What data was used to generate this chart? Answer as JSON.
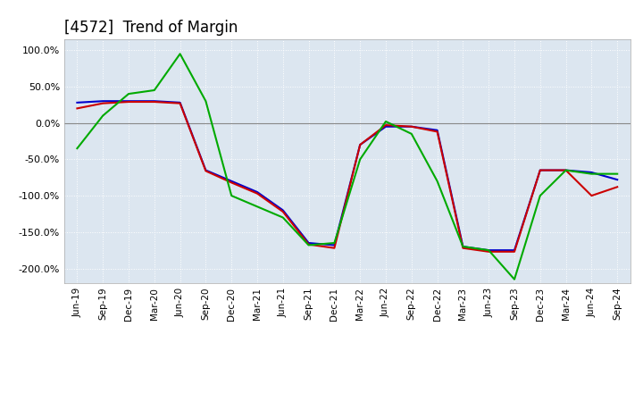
{
  "title": "[4572]  Trend of Margin",
  "x_labels": [
    "Jun-19",
    "Sep-19",
    "Dec-19",
    "Mar-20",
    "Jun-20",
    "Sep-20",
    "Dec-20",
    "Mar-21",
    "Jun-21",
    "Sep-21",
    "Dec-21",
    "Mar-22",
    "Jun-22",
    "Sep-22",
    "Dec-22",
    "Mar-23",
    "Jun-23",
    "Sep-23",
    "Dec-23",
    "Mar-24",
    "Jun-24",
    "Sep-24"
  ],
  "ordinary_income": [
    28,
    30,
    30,
    30,
    28,
    -65,
    -80,
    -95,
    -120,
    -165,
    -168,
    -30,
    -5,
    -5,
    -10,
    -170,
    -175,
    -175,
    -65,
    -65,
    -68,
    -78
  ],
  "net_income": [
    20,
    27,
    29,
    29,
    27,
    -66,
    -82,
    -97,
    -122,
    -167,
    -172,
    -30,
    -3,
    -5,
    -12,
    -172,
    -177,
    -177,
    -65,
    -65,
    -100,
    -88
  ],
  "operating_cashflow": [
    -35,
    10,
    40,
    45,
    95,
    30,
    -100,
    -115,
    -130,
    -168,
    -165,
    -50,
    2,
    -15,
    -80,
    -170,
    -175,
    -215,
    -100,
    -65,
    -70,
    -70
  ],
  "ylim": [
    -220,
    115
  ],
  "yticks": [
    -200,
    -150,
    -100,
    -50,
    0,
    50,
    100
  ],
  "line_color_ordinary": "#0000cc",
  "line_color_net": "#cc0000",
  "line_color_cashflow": "#00aa00",
  "bg_color": "#ffffff",
  "plot_bg_color": "#dce6f0",
  "grid_color": "#ffffff",
  "title_fontsize": 12
}
